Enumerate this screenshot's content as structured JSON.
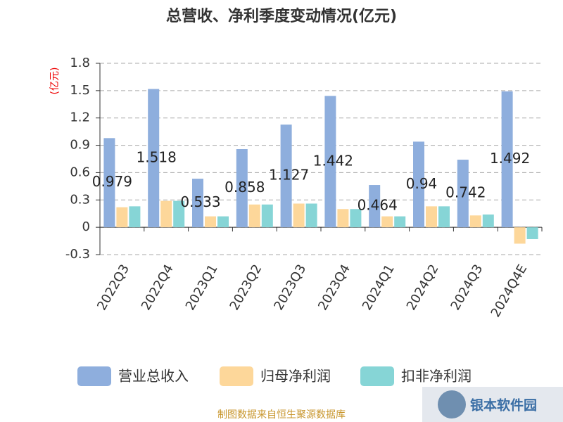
{
  "chart_data": {
    "type": "bar",
    "title": "总营收、净利季度变动情况(亿元)",
    "y_label": "(亿元)",
    "categories": [
      "2022Q3",
      "2022Q4",
      "2023Q1",
      "2023Q2",
      "2023Q3",
      "2023Q4",
      "2024Q1",
      "2024Q2",
      "2024Q3",
      "2024Q4E"
    ],
    "series": [
      {
        "name": "营业总收入",
        "color": "#8eaedd",
        "values": [
          0.979,
          1.518,
          0.533,
          0.858,
          1.127,
          1.442,
          0.464,
          0.94,
          0.742,
          1.492
        ]
      },
      {
        "name": "归母净利润",
        "color": "#fdd79a",
        "values": [
          0.22,
          0.29,
          0.12,
          0.25,
          0.26,
          0.2,
          0.12,
          0.23,
          0.13,
          -0.18
        ]
      },
      {
        "name": "扣非净利润",
        "color": "#86d5d6",
        "values": [
          0.23,
          0.29,
          0.12,
          0.25,
          0.26,
          0.2,
          0.12,
          0.23,
          0.14,
          -0.13
        ]
      }
    ],
    "ylim": [
      -0.3,
      1.8
    ],
    "yticks": [
      -0.3,
      0,
      0.3,
      0.6,
      0.9,
      1.2,
      1.5,
      1.8
    ],
    "grid": true,
    "source": "制图数据来自恒生聚源数据库",
    "watermark": "银本软件园"
  }
}
